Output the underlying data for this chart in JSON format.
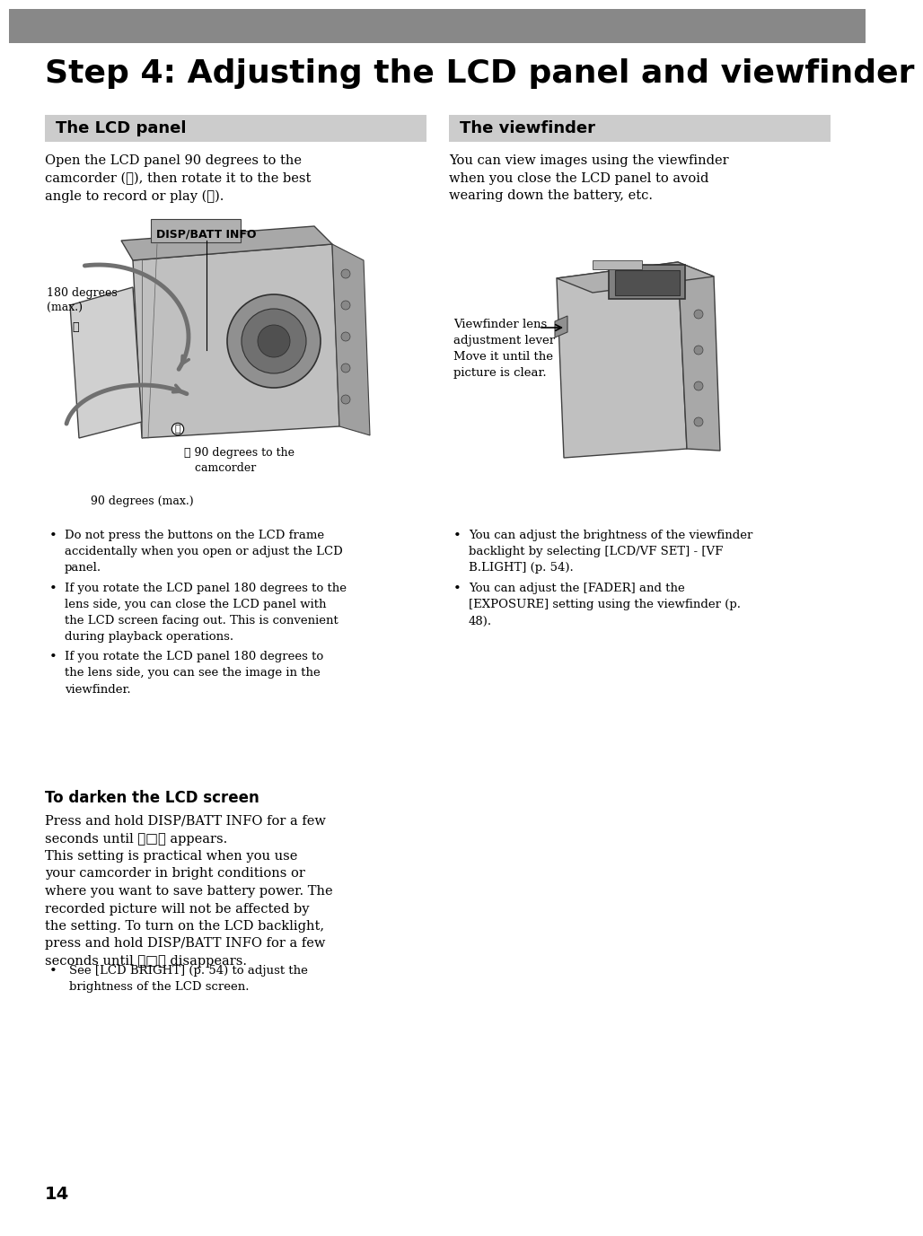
{
  "bg_color": "#ffffff",
  "header_bar_color": "#888888",
  "title": "Step 4: Adjusting the LCD panel and viewfinder",
  "section_bg": "#cccccc",
  "section1_label": "The LCD panel",
  "section2_label": "The viewfinder",
  "lcd_text": "Open the LCD panel 90 degrees to the\ncamcorder (①), then rotate it to the best\nangle to record or play (②).",
  "viewfinder_text": "You can view images using the viewfinder\nwhen you close the LCD panel to avoid\nwearing down the battery, etc.",
  "disp_batt_label": "DISP/BATT INFO",
  "label_180_text": "180 degrees\n(max.)",
  "label_2": "②",
  "label_90cam_text": "① 90 degrees to the\n   camcorder",
  "label_90max_text": "90 degrees (max.)",
  "vf_lens_text": "Viewfinder lens\nadjustment lever\nMove it until the\npicture is clear.",
  "bullet_left_1": "Do not press the buttons on the LCD frame\naccidentally when you open or adjust the LCD\npanel.",
  "bullet_left_2": "If you rotate the LCD panel 180 degrees to the\nlens side, you can close the LCD panel with\nthe LCD screen facing out. This is convenient\nduring playback operations.",
  "bullet_left_3": "If you rotate the LCD panel 180 degrees to\nthe lens side, you can see the image in the\nviewfinder.",
  "bullet_right_1": "You can adjust the brightness of the viewfinder\nbacklight by selecting [LCD/VF SET] - [VF\nB.LIGHT] (p. 54).",
  "bullet_right_2": "You can adjust the [FADER] and the\n[EXPOSURE] setting using the viewfinder (p.\n48).",
  "darken_title": "To darken the LCD screen",
  "darken_para1": "Press and hold DISP/BATT INFO for a few\nseconds until ❖□❖ appears.\nThis setting is practical when you use\nyour camcorder in bright conditions or\nwhere you want to save battery power. The\nrecorded picture will not be affected by\nthe setting. To turn on the LCD backlight,\npress and hold DISP/BATT INFO for a few\nseconds until ❖□❖ disappears.",
  "darken_bullet": "See [LCD BRIGHT] (p. 54) to adjust the\nbrightness of the LCD screen.",
  "page_number": "14"
}
